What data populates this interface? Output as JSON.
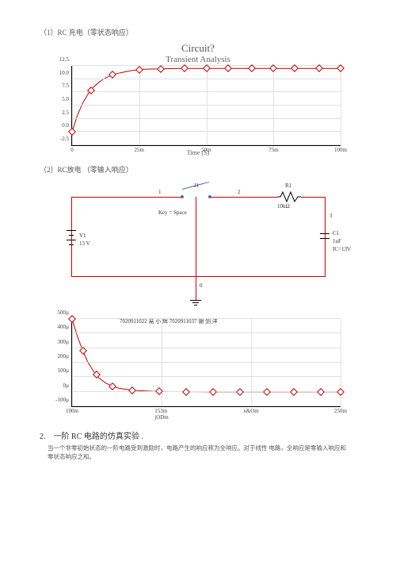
{
  "section1": {
    "label": "（1）RC 充电（零状态响应）"
  },
  "chart1": {
    "type": "line",
    "title": "Circuit?",
    "subtitle": "Transient Analysis",
    "xlim": [
      0,
      100
    ],
    "ylim": [
      -2.5,
      12.5
    ],
    "yticks": [
      "-2.5",
      "0.0",
      "2.5",
      "5.0",
      "7.5",
      "10.0",
      "12.5"
    ],
    "xticks": [
      "0",
      "25m",
      "50m",
      "75m",
      "100m"
    ],
    "xlabel": "Time (S)",
    "curve_color": "#c00000",
    "grid_color": "#e0e0e0",
    "background_color": "#ffffff",
    "points": [
      [
        0,
        0
      ],
      [
        2,
        3.2
      ],
      [
        4,
        5.5
      ],
      [
        6,
        7.2
      ],
      [
        8,
        8.5
      ],
      [
        10,
        9.4
      ],
      [
        12,
        10.1
      ],
      [
        15,
        10.8
      ],
      [
        18,
        11.2
      ],
      [
        22,
        11.6
      ],
      [
        27,
        11.85
      ],
      [
        33,
        11.95
      ],
      [
        40,
        12
      ],
      [
        50,
        12
      ],
      [
        60,
        12
      ],
      [
        75,
        12
      ],
      [
        90,
        12
      ],
      [
        100,
        12
      ]
    ],
    "markers_x": [
      0,
      7,
      15,
      25,
      33,
      42,
      50,
      58,
      67,
      75,
      83,
      92,
      100
    ]
  },
  "section2": {
    "label": "（2）RC放电 （零输入响应）"
  },
  "circuit": {
    "wire_color": "#c00000",
    "labels": {
      "j1": "J1",
      "n1": "1",
      "n2": "2",
      "n3": "3",
      "n0": "0",
      "key": "Key = Space",
      "v1": "V1",
      "v1v": "13 V",
      "r1": "R1",
      "r1v": "10kΩ",
      "c1": "C1",
      "c1v": "1uF",
      "c1ic": "IC=13V"
    }
  },
  "chart2": {
    "type": "line",
    "header": "7020911022  易 小 辉  7020911037  谢 剑 洋",
    "xlim": [
      100,
      300
    ],
    "ylim": [
      -100,
      500
    ],
    "yticks": [
      "-100µ",
      "0µ",
      "100µ",
      "200µ",
      "300µ",
      "400µ",
      "500µ"
    ],
    "xticks": [
      "100m",
      "153m\njODm",
      "x&Om",
      "250m"
    ],
    "curve_color": "#c00000",
    "grid_color": "#e0e0e0",
    "points": [
      [
        100,
        500
      ],
      [
        104,
        380
      ],
      [
        108,
        280
      ],
      [
        112,
        200
      ],
      [
        116,
        140
      ],
      [
        120,
        95
      ],
      [
        125,
        60
      ],
      [
        130,
        38
      ],
      [
        135,
        24
      ],
      [
        142,
        14
      ],
      [
        150,
        7
      ],
      [
        160,
        3
      ],
      [
        175,
        1
      ],
      [
        200,
        0
      ],
      [
        225,
        0
      ],
      [
        250,
        0
      ],
      [
        275,
        0
      ],
      [
        300,
        0
      ]
    ],
    "markers_x": [
      100,
      108,
      118,
      130,
      145,
      165,
      185,
      205,
      225,
      245,
      265,
      285,
      300
    ]
  },
  "heading2": "2.　一阶 RC 电路的仿真实验 .",
  "bodytext": "当一个非零初始状态的一阶电路受到激励时，电路产生的响应称为全响应。对于线性 电路，全响应是零输入响应和零状态响应之和。"
}
